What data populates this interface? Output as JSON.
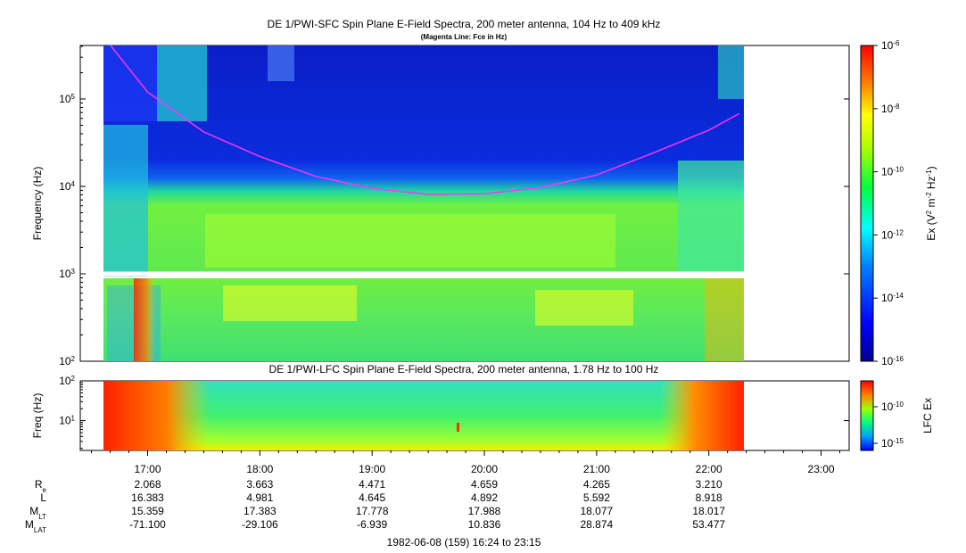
{
  "chart_data": [
    {
      "type": "heatmap",
      "title": "DE 1/PWI-SFC  Spin Plane E-Field Spectra, 200 meter antenna, 104 Hz to 409 kHz",
      "subtitle": "(Magenta Line: Fce in Hz)",
      "ylabel": "Frequency (Hz)",
      "yscale": "log",
      "ylim": [
        100,
        409000
      ],
      "yticks": [
        {
          "value": 100,
          "base": "10",
          "exp": "2"
        },
        {
          "value": 1000,
          "base": "10",
          "exp": "3"
        },
        {
          "value": 10000,
          "base": "10",
          "exp": "4"
        },
        {
          "value": 100000,
          "base": "10",
          "exp": "5"
        }
      ],
      "colorbar": {
        "label_prefix": "Ex (V",
        "label_exp1": "2",
        "label_mid": " m",
        "label_exp2": "-2",
        "label_mid2": " Hz",
        "label_exp3": "-1",
        "label_suffix": ")",
        "scale": "log",
        "range": [
          1e-16,
          1e-06
        ],
        "ticks": [
          {
            "value": 1e-06,
            "base": "10",
            "exp": "-6"
          },
          {
            "value": 1e-08,
            "base": "10",
            "exp": "-8"
          },
          {
            "value": 1e-10,
            "base": "10",
            "exp": "-10"
          },
          {
            "value": 1e-12,
            "base": "10",
            "exp": "-12"
          },
          {
            "value": 1e-14,
            "base": "10",
            "exp": "-14"
          },
          {
            "value": 1e-16,
            "base": "10",
            "exp": "-16"
          }
        ]
      },
      "series": [
        {
          "kind": "line",
          "color": "#ff33ff",
          "points": [
            [
              16.67,
              409000
            ],
            [
              17.0,
              120000
            ],
            [
              17.5,
              42000
            ],
            [
              18.0,
              22000
            ],
            [
              18.5,
              13000
            ],
            [
              19.0,
              9500
            ],
            [
              19.5,
              8100
            ],
            [
              20.0,
              8200
            ],
            [
              20.5,
              9700
            ],
            [
              21.0,
              13500
            ],
            [
              21.5,
              24000
            ],
            [
              22.0,
              44000
            ],
            [
              22.27,
              68000
            ]
          ]
        }
      ]
    },
    {
      "type": "heatmap",
      "title": "DE 1/PWI-LFC  Spin Plane E-Field Spectra, 200 meter antenna, 1.78 Hz to 100 Hz",
      "ylabel": "Freq (Hz)",
      "yscale": "log",
      "ylim": [
        1.78,
        100
      ],
      "yticks": [
        {
          "value": 10,
          "base": "10",
          "exp": "1"
        },
        {
          "value": 100,
          "base": "10",
          "exp": "2"
        }
      ],
      "colorbar": {
        "label": "LFC Ex",
        "scale": "log",
        "ticks": [
          {
            "value": 1e-10,
            "base": "10",
            "exp": "-10"
          },
          {
            "value": 1e-15,
            "base": "10",
            "exp": "-15"
          }
        ]
      }
    }
  ],
  "time_axis": {
    "range_hours": [
      16.4,
      23.25
    ],
    "data_range_hours": [
      16.4,
      22.27
    ],
    "ticks": [
      "17:00",
      "18:00",
      "19:00",
      "20:00",
      "21:00",
      "22:00",
      "23:00"
    ],
    "tick_hours": [
      17,
      18,
      19,
      20,
      21,
      22,
      23
    ]
  },
  "ephemeris": {
    "labels": [
      {
        "main": "R",
        "sub": "e"
      },
      {
        "main": "L",
        "sub": ""
      },
      {
        "main": "M",
        "sub": "LT"
      },
      {
        "main": "M",
        "sub": "LAT"
      }
    ],
    "columns": [
      [
        "2.068",
        "16.383",
        "15.359",
        "-71.100"
      ],
      [
        "3.663",
        "4.981",
        "17.383",
        "-29.106"
      ],
      [
        "4.471",
        "4.645",
        "17.778",
        "-6.939"
      ],
      [
        "4.659",
        "4.892",
        "17.988",
        "10.836"
      ],
      [
        "4.265",
        "5.592",
        "18.077",
        "28.874"
      ],
      [
        "3.210",
        "8.918",
        "18.017",
        "53.477"
      ]
    ]
  },
  "footer": "1982-06-08 (159) 16:24 to 23:15"
}
